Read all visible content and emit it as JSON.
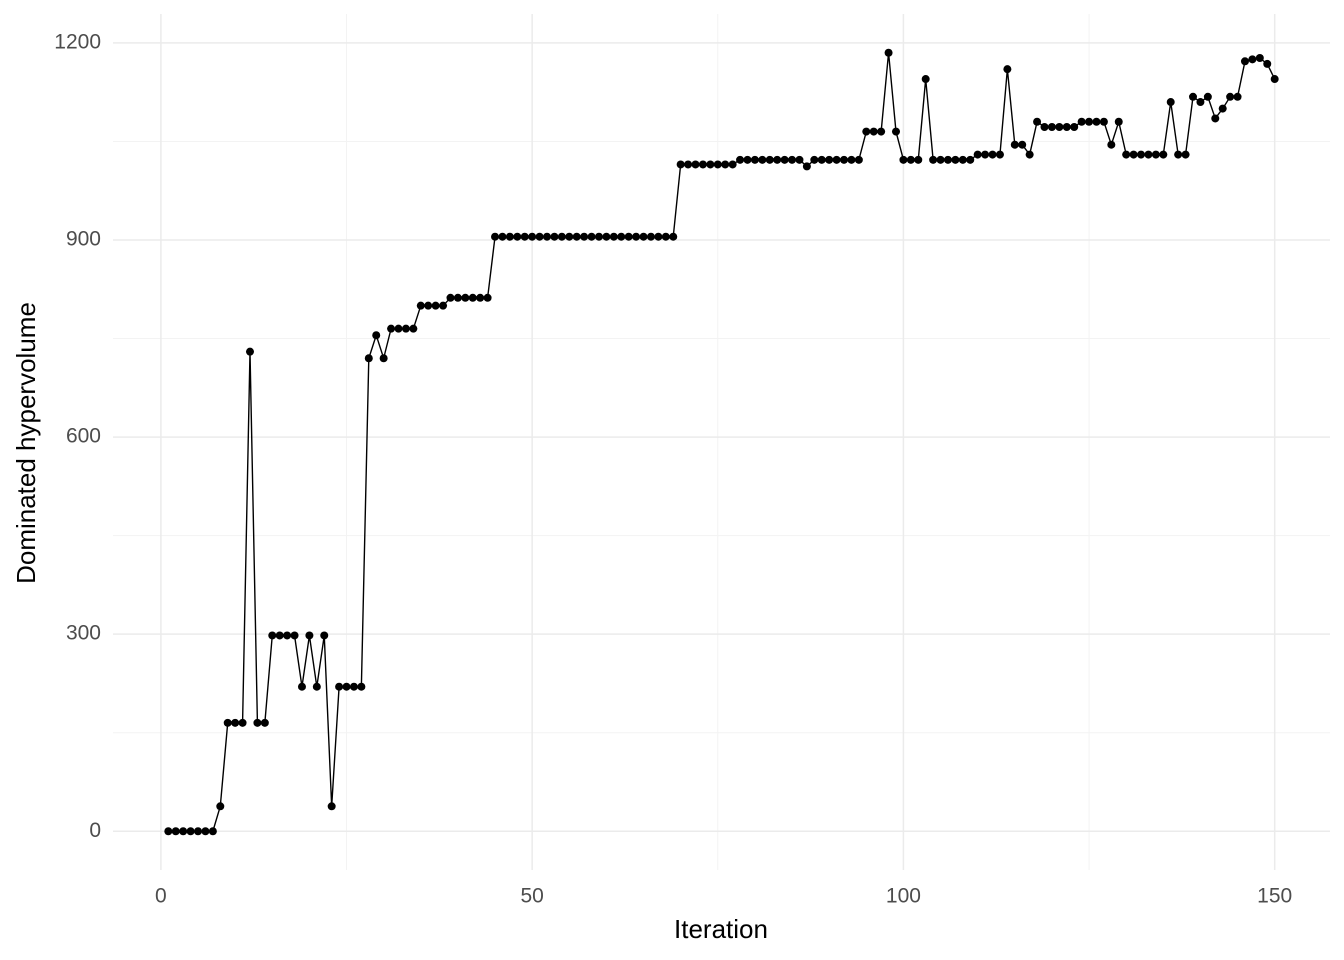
{
  "chart_data": {
    "type": "line",
    "x_label": "Iteration",
    "y_label": "Dominated hypervolume",
    "x": [
      1,
      2,
      3,
      4,
      5,
      6,
      7,
      8,
      9,
      10,
      11,
      12,
      13,
      14,
      15,
      16,
      17,
      18,
      19,
      20,
      21,
      22,
      23,
      24,
      25,
      26,
      27,
      28,
      29,
      30,
      31,
      32,
      33,
      34,
      35,
      36,
      37,
      38,
      39,
      40,
      41,
      42,
      43,
      44,
      45,
      46,
      47,
      48,
      49,
      50,
      51,
      52,
      53,
      54,
      55,
      56,
      57,
      58,
      59,
      60,
      61,
      62,
      63,
      64,
      65,
      66,
      67,
      68,
      69,
      70,
      71,
      72,
      73,
      74,
      75,
      76,
      77,
      78,
      79,
      80,
      81,
      82,
      83,
      84,
      85,
      86,
      87,
      88,
      89,
      90,
      91,
      92,
      93,
      94,
      95,
      96,
      97,
      98,
      99,
      100,
      101,
      102,
      103,
      104,
      105,
      106,
      107,
      108,
      109,
      110,
      111,
      112,
      113,
      114,
      115,
      116,
      117,
      118,
      119,
      120,
      121,
      122,
      123,
      124,
      125,
      126,
      127,
      128,
      129,
      130,
      131,
      132,
      133,
      134,
      135,
      136,
      137,
      138,
      139,
      140,
      141,
      142,
      143,
      144,
      145,
      146,
      147,
      148,
      149,
      150
    ],
    "values": [
      0,
      0,
      0,
      0,
      0,
      0,
      0,
      38,
      165,
      165,
      165,
      730,
      165,
      165,
      298,
      298,
      298,
      298,
      220,
      298,
      220,
      298,
      38,
      220,
      220,
      220,
      220,
      720,
      755,
      720,
      765,
      765,
      765,
      765,
      800,
      800,
      800,
      800,
      812,
      812,
      812,
      812,
      812,
      812,
      905,
      905,
      905,
      905,
      905,
      905,
      905,
      905,
      905,
      905,
      905,
      905,
      905,
      905,
      905,
      905,
      905,
      905,
      905,
      905,
      905,
      905,
      905,
      905,
      905,
      1015,
      1015,
      1015,
      1015,
      1015,
      1015,
      1015,
      1015,
      1022,
      1022,
      1022,
      1022,
      1022,
      1022,
      1022,
      1022,
      1022,
      1012,
      1022,
      1022,
      1022,
      1022,
      1022,
      1022,
      1022,
      1065,
      1065,
      1065,
      1185,
      1065,
      1022,
      1022,
      1022,
      1145,
      1022,
      1022,
      1022,
      1022,
      1022,
      1022,
      1030,
      1030,
      1030,
      1030,
      1160,
      1045,
      1045,
      1030,
      1080,
      1072,
      1072,
      1072,
      1072,
      1072,
      1080,
      1080,
      1080,
      1080,
      1045,
      1080,
      1030,
      1030,
      1030,
      1030,
      1030,
      1030,
      1110,
      1030,
      1030,
      1118,
      1110,
      1118,
      1085,
      1100,
      1118,
      1118,
      1172,
      1175,
      1177,
      1168,
      1145
    ],
    "color": "#000000",
    "xlim": [
      -6.45,
      157.45
    ],
    "xticks": [
      0,
      50,
      100,
      150
    ],
    "x_minor_ticks": [
      25,
      75,
      125
    ],
    "ylim": [
      -59,
      1244
    ],
    "yticks": [
      0,
      300,
      600,
      900,
      1200
    ],
    "y_minor_ticks": [
      150,
      450,
      750,
      1050
    ],
    "grid": true
  }
}
